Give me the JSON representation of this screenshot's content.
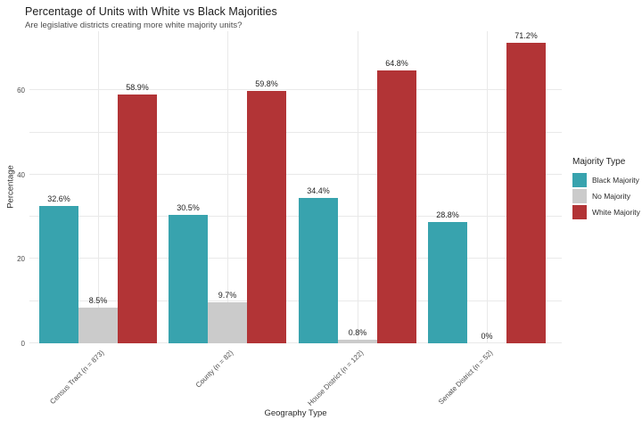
{
  "chart_data": {
    "type": "bar",
    "title": "Percentage of Units with White vs Black Majorities",
    "subtitle": "Are legislative districts creating more white majority units?",
    "xlabel": "Geography Type",
    "ylabel": "Percentage",
    "legend_title": "Majority Type",
    "legend_position": "right",
    "grid": true,
    "categories": [
      "Census Tract (n = 873)",
      "County (n = 82)",
      "House District (n = 122)",
      "Senate District (n = 52)"
    ],
    "series": [
      {
        "name": "Black Majority",
        "color": "#38a3ae",
        "values": [
          32.6,
          30.5,
          34.4,
          28.8
        ],
        "labels": [
          "32.6%",
          "30.5%",
          "34.4%",
          "28.8%"
        ]
      },
      {
        "name": "No Majority",
        "color": "#cbcbcb",
        "values": [
          8.5,
          9.7,
          0.8,
          0
        ],
        "labels": [
          "8.5%",
          "9.7%",
          "0.8%",
          "0%"
        ]
      },
      {
        "name": "White Majority",
        "color": "#b23436",
        "values": [
          58.9,
          59.8,
          64.8,
          71.2
        ],
        "labels": [
          "58.9%",
          "59.8%",
          "64.8%",
          "71.2%"
        ]
      }
    ],
    "ylim": [
      0,
      74
    ],
    "yticks": [
      0,
      20,
      40,
      60
    ],
    "gridlines_every": 10
  }
}
